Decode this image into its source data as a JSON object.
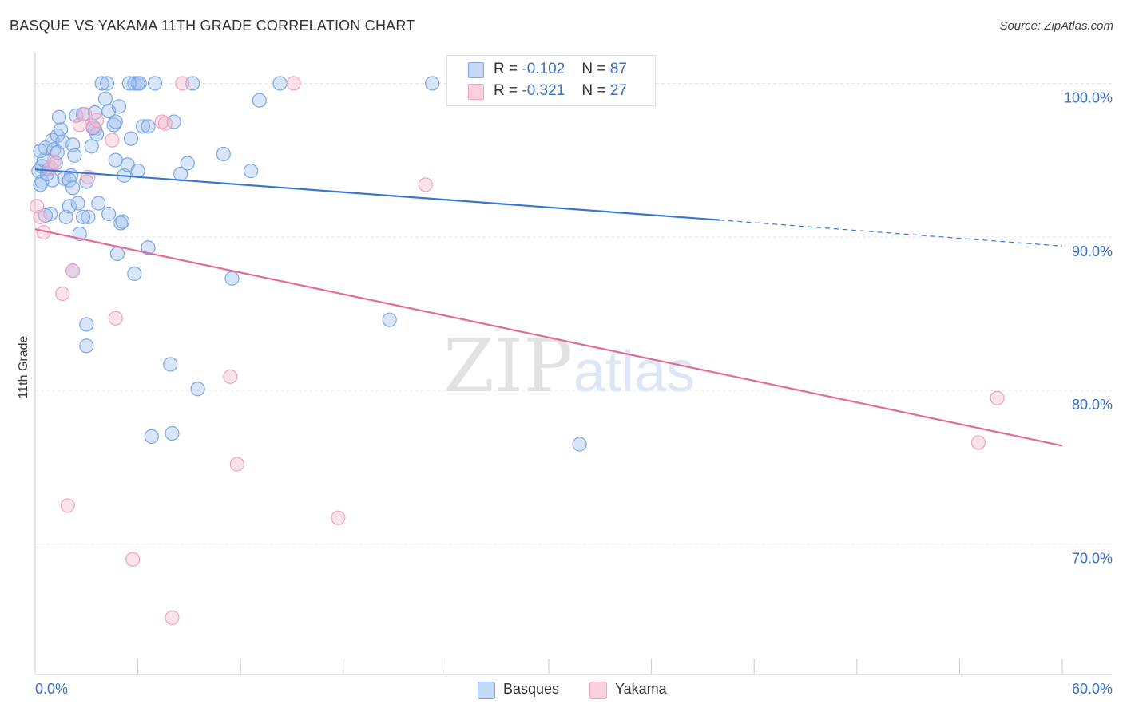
{
  "title": "BASQUE VS YAKAMA 11TH GRADE CORRELATION CHART",
  "source": "Source: ZipAtlas.com",
  "legend_stats": [
    {
      "r_label": "R = ",
      "r_value": "-0.102",
      "n_label": "N = ",
      "n_value": "87"
    },
    {
      "r_label": "R = ",
      "r_value": "-0.321",
      "n_label": "N = ",
      "n_value": "27"
    }
  ],
  "chart_data": {
    "type": "scatter",
    "title": "BASQUE VS YAKAMA 11TH GRADE CORRELATION CHART",
    "xlabel": "",
    "ylabel": "11th Grade",
    "xlim": [
      0,
      60
    ],
    "ylim": [
      61.5,
      102
    ],
    "x_tick_labels": [
      "0.0%",
      "60.0%"
    ],
    "y_ticks": [
      70,
      80,
      90,
      100
    ],
    "y_tick_labels": [
      "70.0%",
      "80.0%",
      "90.0%",
      "100.0%"
    ],
    "grid": true,
    "legend_position": "bottom",
    "watermark": {
      "zip": "ZIP",
      "atlas": "atlas"
    },
    "colors": {
      "Basques": "#7aa6e6",
      "Yakama": "#f1a1bd",
      "basques_line": "#3876d2",
      "yakama_line": "#e46a99"
    },
    "series": [
      {
        "name": "Basques",
        "r": "-0.102",
        "n": "87",
        "trend": {
          "x0": 0,
          "y0": 94.4,
          "x1": 40,
          "y1": 91.1,
          "x_dash_end": 60,
          "y_dash_end": 89.4
        },
        "points": [
          [
            0.2,
            94.3
          ],
          [
            0.3,
            93.4
          ],
          [
            0.4,
            94.6
          ],
          [
            0.5,
            95.0
          ],
          [
            0.6,
            95.8
          ],
          [
            0.4,
            93.6
          ],
          [
            0.8,
            94.4
          ],
          [
            1.0,
            96.3
          ],
          [
            1.1,
            95.7
          ],
          [
            1.3,
            96.6
          ],
          [
            1.5,
            97.0
          ],
          [
            1.4,
            97.8
          ],
          [
            0.9,
            91.5
          ],
          [
            1.7,
            93.8
          ],
          [
            1.8,
            91.3
          ],
          [
            2.0,
            92.0
          ],
          [
            2.1,
            94.0
          ],
          [
            2.2,
            96.0
          ],
          [
            2.3,
            95.3
          ],
          [
            2.4,
            97.9
          ],
          [
            2.6,
            90.2
          ],
          [
            2.5,
            92.2
          ],
          [
            2.8,
            98.0
          ],
          [
            3.0,
            93.6
          ],
          [
            3.1,
            91.3
          ],
          [
            3.3,
            95.9
          ],
          [
            3.5,
            97.0
          ],
          [
            3.6,
            96.7
          ],
          [
            3.9,
            100.0
          ],
          [
            4.2,
            100.0
          ],
          [
            4.1,
            99.0
          ],
          [
            4.3,
            98.2
          ],
          [
            4.6,
            97.3
          ],
          [
            4.7,
            97.5
          ],
          [
            4.9,
            98.5
          ],
          [
            5.0,
            90.9
          ],
          [
            5.2,
            94.0
          ],
          [
            5.4,
            94.7
          ],
          [
            5.6,
            96.4
          ],
          [
            5.8,
            100.0
          ],
          [
            6.0,
            100.0
          ],
          [
            6.1,
            100.0
          ],
          [
            6.3,
            97.2
          ],
          [
            6.6,
            89.3
          ],
          [
            7.0,
            100.0
          ],
          [
            8.1,
            97.5
          ],
          [
            8.5,
            94.1
          ],
          [
            8.9,
            94.8
          ],
          [
            9.2,
            100.0
          ],
          [
            11.0,
            95.4
          ],
          [
            12.6,
            94.3
          ],
          [
            13.1,
            98.9
          ],
          [
            14.3,
            100.0
          ],
          [
            23.2,
            100.0
          ],
          [
            33.3,
            100.0
          ],
          [
            34.6,
            99.5
          ],
          [
            1.3,
            95.5
          ],
          [
            1.0,
            93.7
          ],
          [
            0.6,
            91.4
          ],
          [
            2.0,
            93.7
          ],
          [
            2.8,
            91.3
          ],
          [
            3.4,
            97.1
          ],
          [
            3.7,
            92.2
          ],
          [
            4.3,
            91.5
          ],
          [
            4.7,
            95.0
          ],
          [
            5.1,
            91.0
          ],
          [
            6.0,
            94.3
          ],
          [
            6.6,
            97.2
          ],
          [
            2.2,
            87.8
          ],
          [
            3.0,
            84.3
          ],
          [
            3.0,
            82.9
          ],
          [
            4.8,
            88.9
          ],
          [
            5.8,
            87.6
          ],
          [
            7.9,
            81.7
          ],
          [
            9.5,
            80.1
          ],
          [
            6.8,
            77.0
          ],
          [
            8.0,
            77.2
          ],
          [
            11.5,
            87.3
          ],
          [
            20.7,
            84.6
          ],
          [
            31.8,
            76.5
          ],
          [
            0.3,
            95.6
          ],
          [
            1.6,
            96.2
          ],
          [
            3.5,
            98.1
          ],
          [
            2.2,
            93.2
          ],
          [
            1.2,
            94.8
          ],
          [
            0.7,
            94.1
          ],
          [
            5.5,
            100.0
          ]
        ]
      },
      {
        "name": "Yakama",
        "r": "-0.321",
        "n": "27",
        "trend": {
          "x0": 0,
          "y0": 90.5,
          "x1": 60,
          "y1": 76.4
        },
        "points": [
          [
            0.1,
            92.0
          ],
          [
            0.3,
            91.3
          ],
          [
            0.5,
            90.3
          ],
          [
            0.9,
            94.5
          ],
          [
            1.1,
            94.9
          ],
          [
            1.6,
            86.3
          ],
          [
            1.9,
            72.5
          ],
          [
            2.2,
            87.8
          ],
          [
            2.6,
            97.3
          ],
          [
            2.9,
            98.0
          ],
          [
            3.1,
            93.9
          ],
          [
            3.4,
            97.2
          ],
          [
            3.6,
            97.6
          ],
          [
            4.5,
            96.3
          ],
          [
            4.7,
            84.7
          ],
          [
            5.7,
            69.0
          ],
          [
            7.4,
            97.5
          ],
          [
            7.6,
            97.4
          ],
          [
            8.0,
            65.2
          ],
          [
            8.6,
            100.0
          ],
          [
            11.4,
            80.9
          ],
          [
            11.8,
            75.2
          ],
          [
            15.1,
            100.0
          ],
          [
            17.7,
            71.7
          ],
          [
            22.8,
            93.4
          ],
          [
            55.1,
            76.6
          ],
          [
            56.2,
            79.5
          ]
        ]
      }
    ]
  }
}
